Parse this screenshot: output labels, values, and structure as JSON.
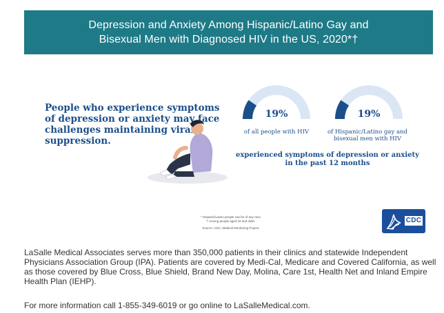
{
  "infographic": {
    "title_line1": "Depression and Anxiety Among Hispanic/Latino Gay and",
    "title_line2": "Bisexual Men with Diagnosed HIV in the US, 2020*†",
    "tagline": "People who experience symptoms of depression or anxiety may face challenges maintaining viral suppression.",
    "gauges": [
      {
        "percent_label": "19%",
        "value": 19,
        "caption_line1": "of all people with HIV",
        "caption_line2": ""
      },
      {
        "percent_label": "19%",
        "value": 19,
        "caption_line1": "of Hispanic/Latino gay and",
        "caption_line2": "bisexual men with HIV"
      }
    ],
    "summary_line1": "experienced symptoms of depression or anxiety",
    "summary_line2": "in the past 12 months",
    "footnote1": "* Hispanic/Latino people can be of any race.",
    "footnote2": "† Among people aged 18 and older.",
    "source": "Source: CDC, Medical Monitoring Project.",
    "logo_text": "CDC",
    "colors": {
      "banner": "#1e7a87",
      "accent_blue": "#1b4f8a",
      "gauge_track": "#dbe6f4"
    }
  },
  "body": {
    "paragraph1": "LaSalle Medical Associates serves more than 350,000 patients in their clinics and statewide Independent Physicians Association Group (IPA). Patients are covered by Medi-Cal, Medicare and Covered California, as well as those covered by Blue Cross, Blue Shield, Brand New Day, Molina, Care 1st, Health Net and Inland Empire Health Plan (IEHP).",
    "paragraph2": "For more information call 1-855-349-6019 or go online to LaSalleMedical.com."
  }
}
